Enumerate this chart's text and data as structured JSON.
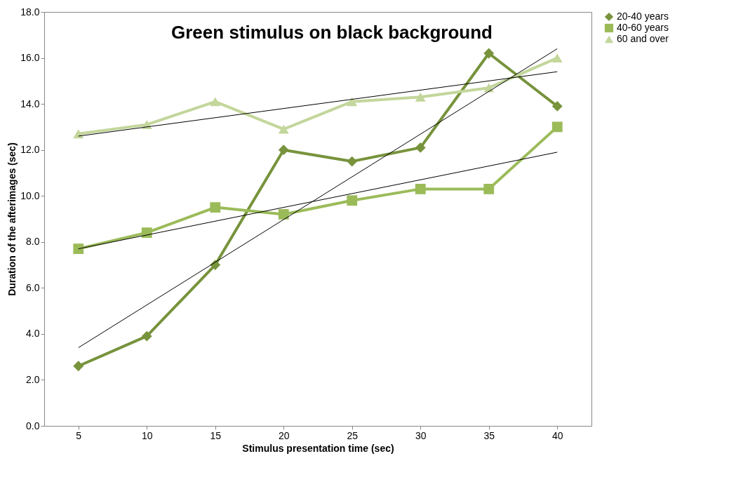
{
  "chart_data": {
    "type": "line",
    "title": "Green stimulus on  black background",
    "xlabel": "Stimulus presentation time (sec)",
    "ylabel": "Duration of the afterimages (sec)",
    "categories": [
      "5",
      "10",
      "15",
      "20",
      "25",
      "30",
      "35",
      "40"
    ],
    "series": [
      {
        "name": "20-40 years",
        "color": "#77933c",
        "marker": "diamond",
        "values": [
          2.6,
          3.9,
          7.0,
          12.0,
          11.5,
          12.1,
          16.2,
          13.9
        ]
      },
      {
        "name": "40-60 years",
        "color": "#9bbb59",
        "marker": "square",
        "values": [
          7.7,
          8.4,
          9.5,
          9.2,
          9.8,
          10.3,
          10.3,
          13.0
        ]
      },
      {
        "name": "60 and over",
        "color": "#c3d69b",
        "marker": "triangle",
        "values": [
          12.7,
          13.1,
          14.1,
          12.9,
          14.1,
          14.3,
          14.7,
          16.0
        ]
      },
      {
        "type": "line",
        "color": "#000000",
        "x": [
          "5",
          "40"
        ],
        "values": [
          3.4,
          16.4
        ]
      },
      {
        "type": "line",
        "color": "#000000",
        "x": [
          "5",
          "40"
        ],
        "values": [
          7.7,
          11.9
        ]
      },
      {
        "type": "line",
        "color": "#000000",
        "x": [
          "5",
          "40"
        ],
        "values": [
          12.6,
          15.4
        ]
      }
    ],
    "ylim": [
      0,
      18
    ],
    "yticks": [
      {
        "value": 0,
        "label": "0.0"
      },
      {
        "value": 2,
        "label": "2.0"
      },
      {
        "value": 4,
        "label": "4.0"
      },
      {
        "value": 6,
        "label": "6.0"
      },
      {
        "value": 8,
        "label": "8.0"
      },
      {
        "value": 10,
        "label": "10.0"
      },
      {
        "value": 12,
        "label": "12.0"
      },
      {
        "value": 14,
        "label": "14.0"
      },
      {
        "value": 16,
        "label": "16.0"
      },
      {
        "value": 18,
        "label": "18.0"
      }
    ],
    "grid": false,
    "legend": "right",
    "line_style": "solid"
  }
}
